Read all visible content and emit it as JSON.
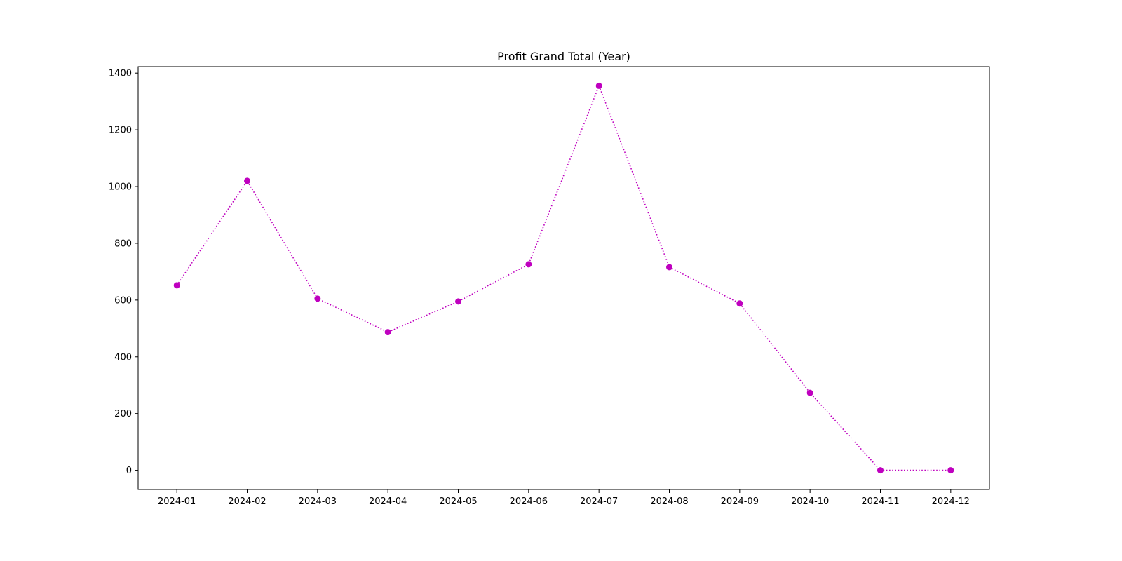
{
  "chart_data": {
    "type": "line",
    "title": "Profit Grand Total (Year)",
    "xlabel": "",
    "ylabel": "",
    "categories": [
      "2024-01",
      "2024-02",
      "2024-03",
      "2024-04",
      "2024-05",
      "2024-06",
      "2024-07",
      "2024-08",
      "2024-09",
      "2024-10",
      "2024-11",
      "2024-12"
    ],
    "series": [
      {
        "values": [
          652,
          1020,
          605,
          487,
          595,
          726,
          1355,
          716,
          588,
          273,
          0,
          0
        ],
        "color": "#bf00bf",
        "line_style": "dotted",
        "marker": "circle"
      }
    ],
    "y_ticks": [
      0,
      200,
      400,
      600,
      800,
      1000,
      1200,
      1400
    ],
    "ylim": [
      -67.75,
      1422.75
    ],
    "grid": false,
    "legend": "none"
  }
}
